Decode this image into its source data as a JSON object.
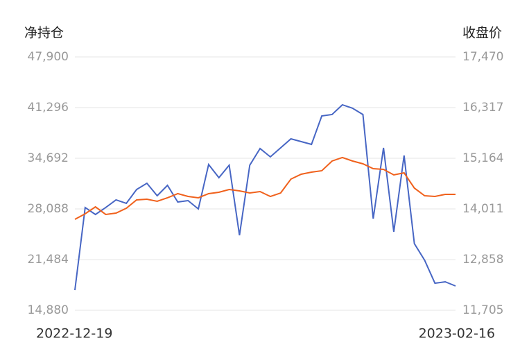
{
  "chart_data": {
    "type": "line",
    "y_label": "净持仓",
    "y2_label": "收盘价",
    "categories": [
      "2022-12-19",
      null,
      null,
      null,
      null,
      null,
      null,
      null,
      null,
      null,
      null,
      null,
      null,
      null,
      null,
      null,
      null,
      null,
      null,
      null,
      null,
      null,
      null,
      null,
      null,
      null,
      null,
      null,
      null,
      null,
      null,
      null,
      null,
      null,
      null,
      null,
      null,
      "2023-02-16"
    ],
    "series": [
      {
        "color": "#4766c4",
        "values": [
          17504,
          28270,
          27365,
          28270,
          29265,
          28812,
          30622,
          31436,
          29808,
          31165,
          28993,
          29174,
          28089,
          33879,
          32160,
          33788,
          24651,
          33788,
          35960,
          34874,
          36050,
          37226,
          36864,
          36502,
          40212,
          40393,
          41659,
          41207,
          40393,
          26822,
          36050,
          25103,
          35055,
          23565,
          21394,
          18408,
          18589,
          18046
        ]
      },
      {
        "color": "#f0611c",
        "axis": "y2",
        "values": [
          13774,
          13901,
          14058,
          13885,
          13916,
          14027,
          14216,
          14232,
          14185,
          14264,
          14359,
          14295,
          14264,
          14359,
          14390,
          14453,
          14422,
          14374,
          14406,
          14295,
          14374,
          14690,
          14801,
          14848,
          14880,
          15101,
          15180,
          15101,
          15038,
          14927,
          14911,
          14785,
          14832,
          14485,
          14311,
          14295,
          14343,
          14343
        ]
      }
    ],
    "ylim": [
      14880,
      47900
    ],
    "yticks": [
      {
        "value": 14880,
        "label": "14,880"
      },
      {
        "value": 21484,
        "label": "21,484"
      },
      {
        "value": 28088,
        "label": "28,088"
      },
      {
        "value": 34692,
        "label": "34,692"
      },
      {
        "value": 41296,
        "label": "41,296"
      },
      {
        "value": 47900,
        "label": "47,900"
      }
    ],
    "y2lim": [
      11705,
      17470
    ],
    "y2ticks": [
      {
        "value": 11705,
        "label": "11,705"
      },
      {
        "value": 12858,
        "label": "12,858"
      },
      {
        "value": 14011,
        "label": "14,011"
      },
      {
        "value": 15164,
        "label": "15,164"
      },
      {
        "value": 16317,
        "label": "16,317"
      },
      {
        "value": 17470,
        "label": "17,470"
      }
    ],
    "grid": true
  }
}
